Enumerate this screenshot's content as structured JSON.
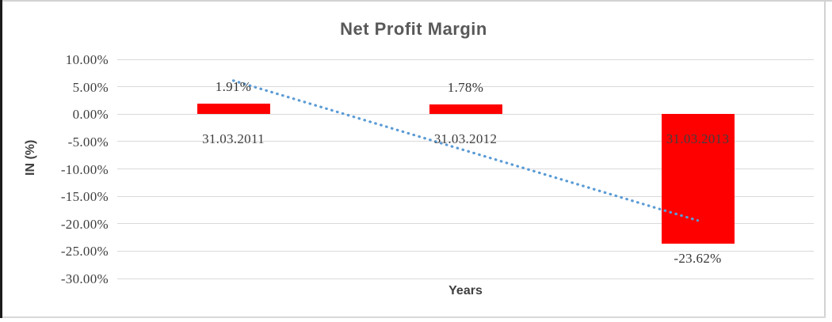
{
  "chart_data": {
    "type": "bar",
    "title": "Net Profit Margin",
    "xlabel": "Years",
    "ylabel": "IN (%)",
    "categories": [
      "31.03.2011",
      "31.03.2012",
      "31.03.2013"
    ],
    "values": [
      1.91,
      1.78,
      -23.62
    ],
    "data_labels": [
      "1.91%",
      "1.78%",
      "-23.62%"
    ],
    "yticks": [
      "10.00%",
      "5.00%",
      "0.00%",
      "-5.00%",
      "-10.00%",
      "-15.00%",
      "-20.00%",
      "-25.00%",
      "-30.00%"
    ],
    "ylim": [
      -30,
      10
    ],
    "grid": true,
    "legend": false,
    "bar_color": "#FF0000",
    "trendline": {
      "type": "linear",
      "style": "dotted",
      "color": "#5B9BD5",
      "start_value": 6.12,
      "end_value": -19.41
    },
    "colors": {
      "title_text": "#595959",
      "axis_title_text": "#404040",
      "tick_text": "#3f3f3f",
      "gridline": "#d9d9d9",
      "frame_left": "#1c1c1c",
      "frame_light": "#d2d2d2"
    }
  }
}
